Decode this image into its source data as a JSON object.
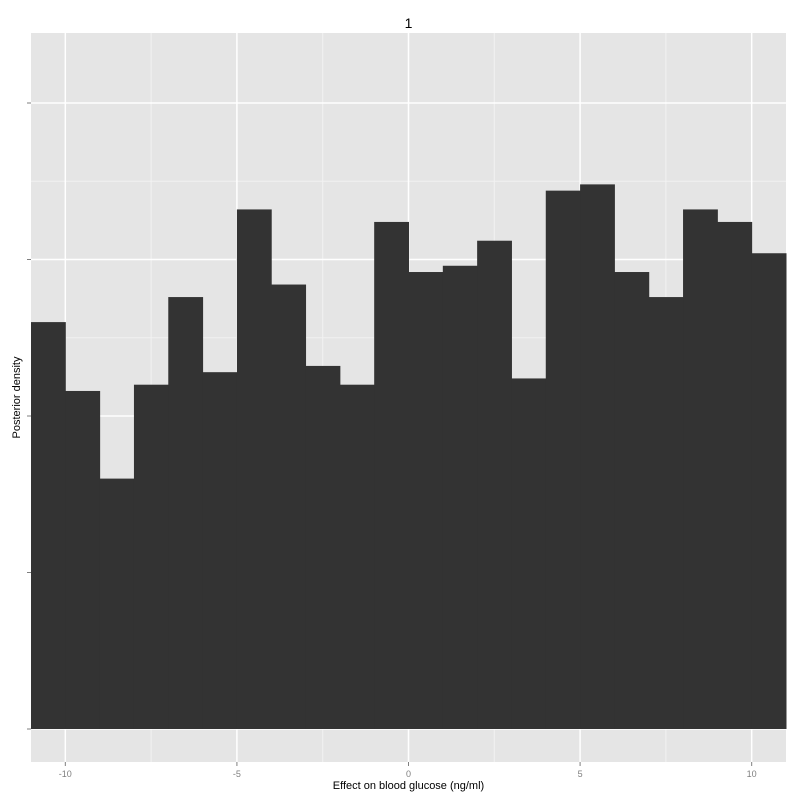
{
  "chart_data": {
    "type": "bar",
    "title": "1",
    "xlabel": "Effect on blood glucose (ng/ml)",
    "ylabel": "Posterior density",
    "x_ticks": [
      "-10",
      "-5",
      "0",
      "5",
      "10"
    ],
    "x_tick_values": [
      -10,
      -5,
      0,
      5,
      10
    ],
    "xlim": [
      -11,
      11
    ],
    "ylim": [
      0,
      1.0
    ],
    "y_tick_values": [
      0,
      0.25,
      0.5,
      0.75,
      1.0
    ],
    "y_tick_labels_shown": false,
    "grid": true,
    "bin_width": 1,
    "bin_edges": [
      -11,
      -10,
      -9,
      -8,
      -7,
      -6,
      -5,
      -4,
      -3,
      -2,
      -1,
      0,
      1,
      2,
      3,
      4,
      5,
      6,
      7,
      8,
      9,
      10,
      11
    ],
    "values": [
      0.65,
      0.54,
      0.4,
      0.55,
      0.69,
      0.57,
      0.83,
      0.71,
      0.58,
      0.55,
      0.81,
      0.73,
      0.74,
      0.78,
      0.56,
      0.86,
      0.87,
      0.73,
      0.69,
      0.83,
      0.81,
      0.76
    ],
    "colors": {
      "bar": "#333333",
      "panel": "#e5e5e5",
      "grid_major": "#ffffff",
      "grid_minor": "#f2f2f2",
      "tick": "#7f7f7f"
    }
  }
}
